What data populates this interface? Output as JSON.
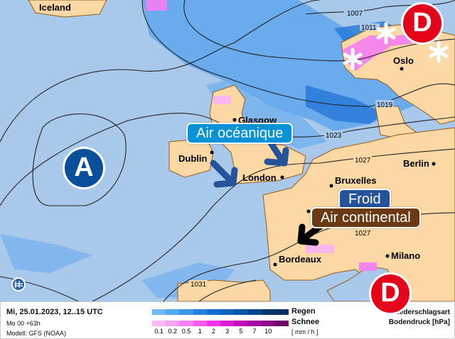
{
  "map": {
    "cities": [
      "Iceland",
      "Oslo",
      "Glasgow",
      "Dublin",
      "London",
      "Berlin",
      "Bruxelles",
      "Bordeaux",
      "Milano"
    ],
    "isobars": [
      "1007",
      "1011",
      "1019",
      "1023",
      "1027",
      "1027",
      "1031"
    ],
    "pressure_systems": [
      {
        "label": "A",
        "type": "high",
        "color": "#0a4f9a"
      },
      {
        "label": "D",
        "type": "low",
        "color": "#e3061b"
      },
      {
        "label": "D",
        "type": "low",
        "color": "#e3061b"
      }
    ],
    "air_masses": [
      {
        "label": "Air océanique",
        "color": "#0592d6"
      },
      {
        "label": "Froid",
        "color": "#24539a"
      },
      {
        "label": "Air continental",
        "color": "#6b3a12"
      }
    ],
    "icons": [
      "snowflake-icon",
      "globe-logo-icon"
    ],
    "colors": {
      "sea": "#a9c9eb",
      "land": "#fcd9a4",
      "rain": "#3d8fe6",
      "snow": "#f57df2"
    }
  },
  "legend": {
    "date": "Mi, 25.01.2023, 12..15 UTC",
    "run": "Mo 00 +63h",
    "model": "Modell: GFS (NOAA)",
    "rain_label": "Regen",
    "snow_label": "Schnee",
    "unit": "[ mm / h ]",
    "ticks": [
      "0.1",
      "0.2",
      "0.5",
      "1",
      "2",
      "3",
      "5",
      "7",
      "10"
    ],
    "type_label": "Niederschlagsart",
    "pressure_label": "Bodendruck [hPa]",
    "rain_colors": [
      "#72b8f5",
      "#55a6f0",
      "#3d93e8",
      "#2680dd",
      "#116fcf",
      "#0d62bb",
      "#0a55a6",
      "#084590",
      "#083669",
      "#0b3060"
    ],
    "snow_colors": [
      "#fbbcf6",
      "#f9a0f4",
      "#f77ff2",
      "#f45cf0",
      "#f030ea",
      "#dc1ad8",
      "#c20bbf",
      "#a6099f",
      "#8a0785",
      "#6c056a"
    ]
  }
}
